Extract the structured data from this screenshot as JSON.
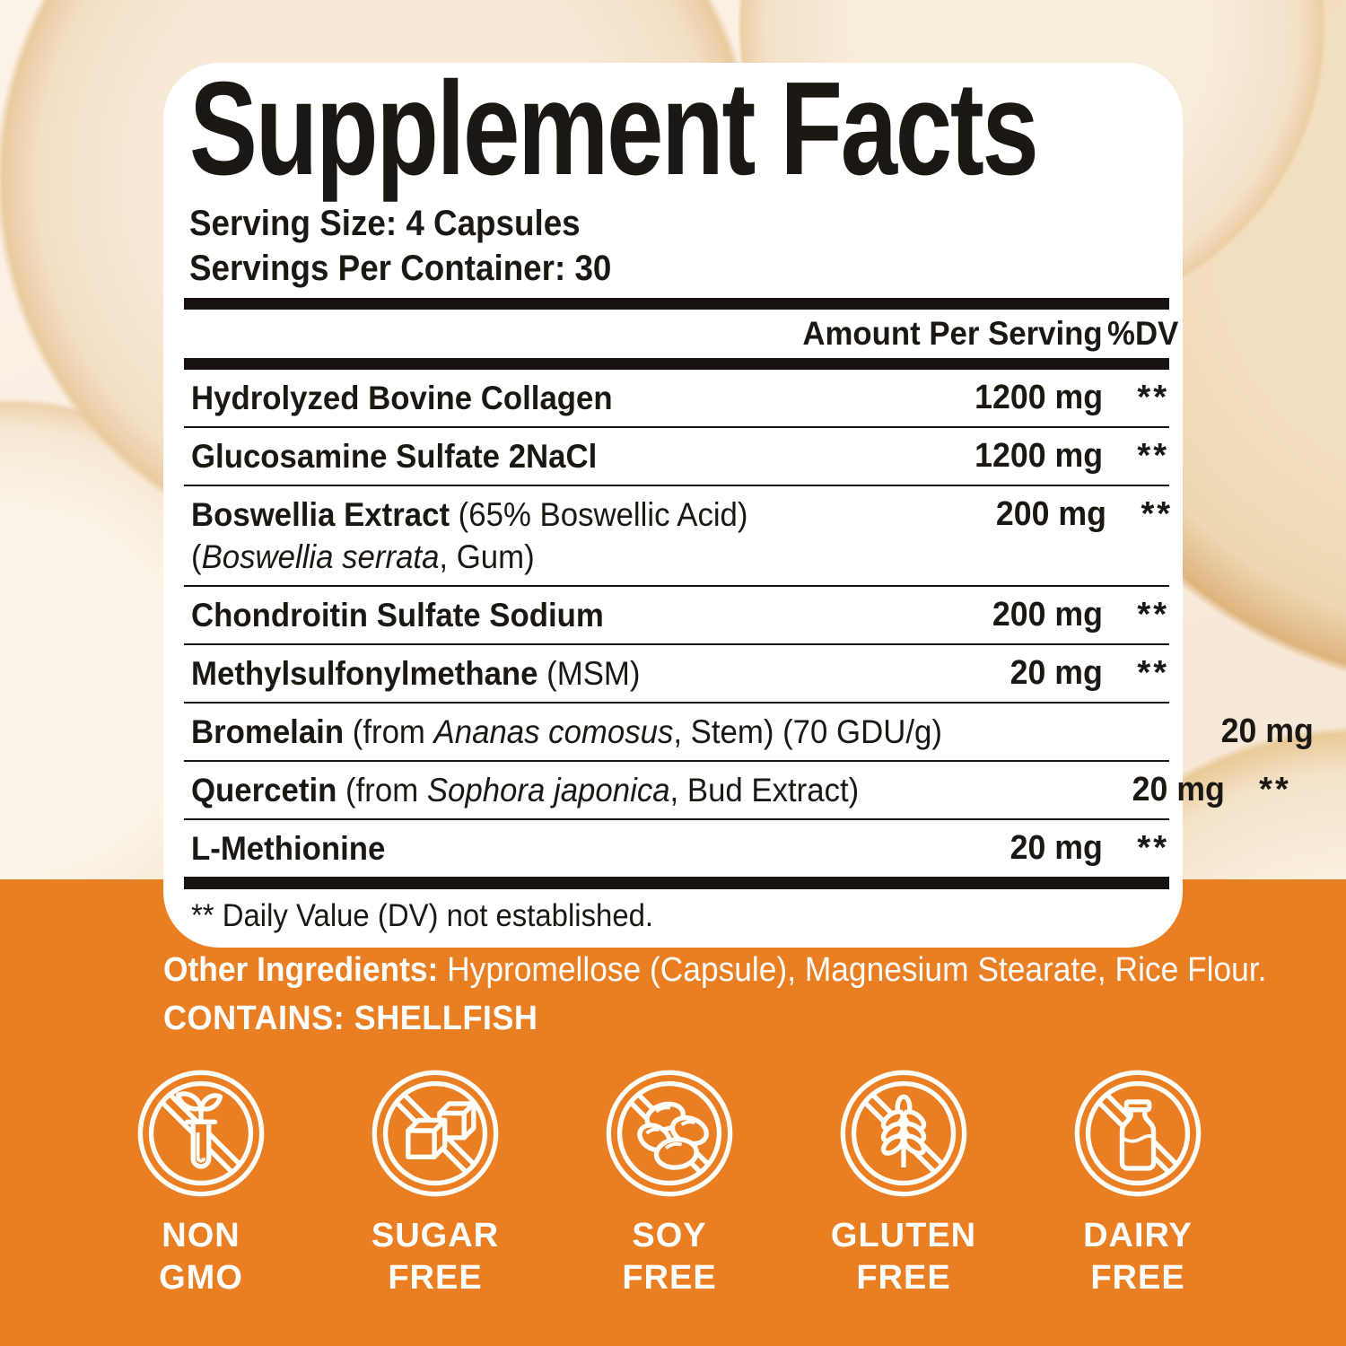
{
  "colors": {
    "orange": "#EA7E22",
    "panel_bg": "#FFFFFF",
    "text": "#1B1713",
    "rule": "#181310",
    "badge_text": "#FFFFFF",
    "cream_bg": "#F8ECDD"
  },
  "panel": {
    "title": "Supplement Facts",
    "serving_size": "Serving Size: 4 Capsules",
    "servings_per_container": "Servings Per Container: 30",
    "header": {
      "amount": "Amount Per Serving",
      "dv": "%DV"
    },
    "rows": [
      {
        "name": [
          [
            {
              "t": "Hydrolyzed Bovine Collagen",
              "s": "b"
            }
          ]
        ],
        "amount": "1200 mg",
        "dv": "**"
      },
      {
        "name": [
          [
            {
              "t": "Glucosamine Sulfate 2NaCl",
              "s": "b"
            }
          ]
        ],
        "amount": "1200 mg",
        "dv": "**"
      },
      {
        "name": [
          [
            {
              "t": "Boswellia Extract",
              "s": "b"
            },
            {
              "t": " (65% Boswellic Acid)",
              "s": "r"
            }
          ],
          [
            {
              "t": "(",
              "s": "r"
            },
            {
              "t": "Boswellia serrata",
              "s": "i"
            },
            {
              "t": ", Gum)",
              "s": "r"
            }
          ]
        ],
        "amount": "200 mg",
        "dv": "**"
      },
      {
        "name": [
          [
            {
              "t": "Chondroitin Sulfate Sodium",
              "s": "b"
            }
          ]
        ],
        "amount": "200 mg",
        "dv": "**"
      },
      {
        "name": [
          [
            {
              "t": "Methylsulfonylmethane",
              "s": "b"
            },
            {
              "t": " (MSM)",
              "s": "r"
            }
          ]
        ],
        "amount": "20 mg",
        "dv": "**"
      },
      {
        "name": [
          [
            {
              "t": "Bromelain",
              "s": "b"
            },
            {
              "t": " (from ",
              "s": "r"
            },
            {
              "t": "Ananas comosus",
              "s": "i"
            },
            {
              "t": ", Stem) (70 GDU/g)",
              "s": "r"
            }
          ]
        ],
        "amount": "20 mg",
        "dv": "**"
      },
      {
        "name": [
          [
            {
              "t": "Quercetin",
              "s": "b"
            },
            {
              "t": " (from ",
              "s": "r"
            },
            {
              "t": "Sophora japonica",
              "s": "i"
            },
            {
              "t": ", Bud Extract)",
              "s": "r"
            }
          ]
        ],
        "amount": "20 mg",
        "dv": "**"
      },
      {
        "name": [
          [
            {
              "t": "L-Methionine",
              "s": "b"
            }
          ]
        ],
        "amount": "20 mg",
        "dv": "**"
      }
    ],
    "footnote": "** Daily Value (DV) not established."
  },
  "other_ingredients": {
    "label": "Other Ingredients:",
    "text": " Hypromellose (Capsule), Magnesium Stearate, Rice Flour."
  },
  "contains": "CONTAINS: SHELLFISH",
  "badges": [
    {
      "icon": "non-gmo-icon",
      "line1": "NON",
      "line2": "GMO"
    },
    {
      "icon": "sugar-free-icon",
      "line1": "SUGAR",
      "line2": "FREE"
    },
    {
      "icon": "soy-free-icon",
      "line1": "SOY",
      "line2": "FREE"
    },
    {
      "icon": "gluten-free-icon",
      "line1": "GLUTEN",
      "line2": "FREE"
    },
    {
      "icon": "dairy-free-icon",
      "line1": "DAIRY",
      "line2": "FREE"
    }
  ]
}
